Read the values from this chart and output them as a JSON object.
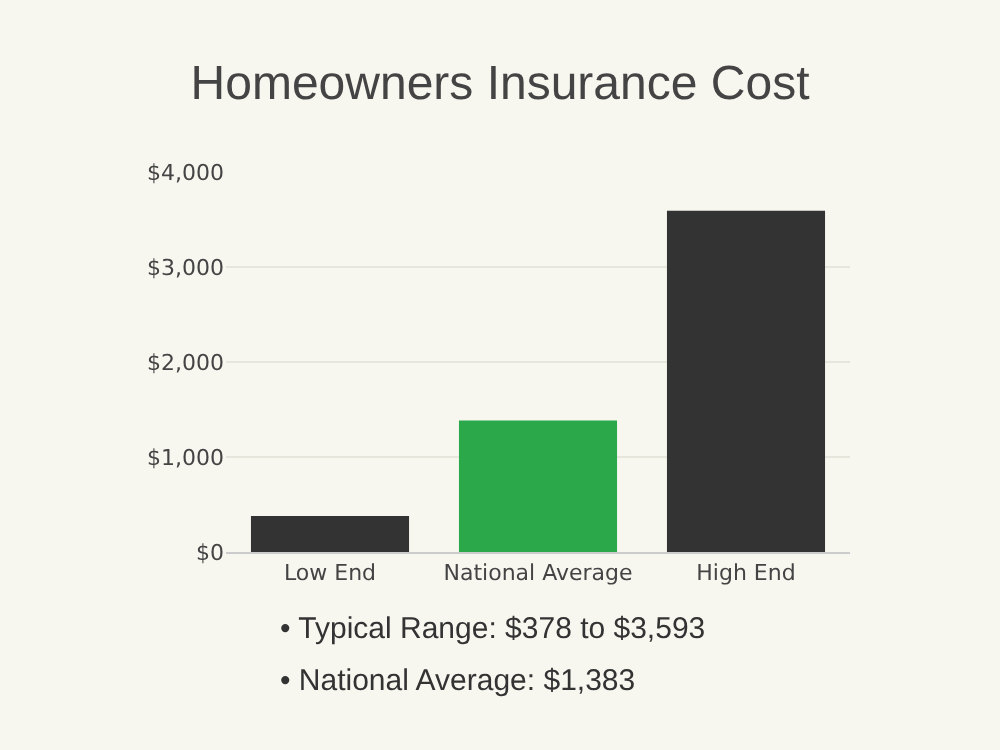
{
  "chart_data": {
    "type": "bar",
    "title": "Homeowners Insurance Cost",
    "categories": [
      "Low End",
      "National Average",
      "High End"
    ],
    "values": [
      378,
      1383,
      3593
    ],
    "colors": [
      "#333333",
      "#2ba84a",
      "#333333"
    ],
    "ylim": [
      0,
      4000
    ],
    "yticks": [
      {
        "value": 0,
        "label": "$0"
      },
      {
        "value": 1000,
        "label": "$1,000"
      },
      {
        "value": 2000,
        "label": "$2,000"
      },
      {
        "value": 3000,
        "label": "$3,000"
      },
      {
        "value": 4000,
        "label": "$4,000"
      }
    ],
    "grid": "y",
    "annotations": [
      "• Typical Range: $378 to $3,593",
      "• National Average: $1,383"
    ]
  }
}
